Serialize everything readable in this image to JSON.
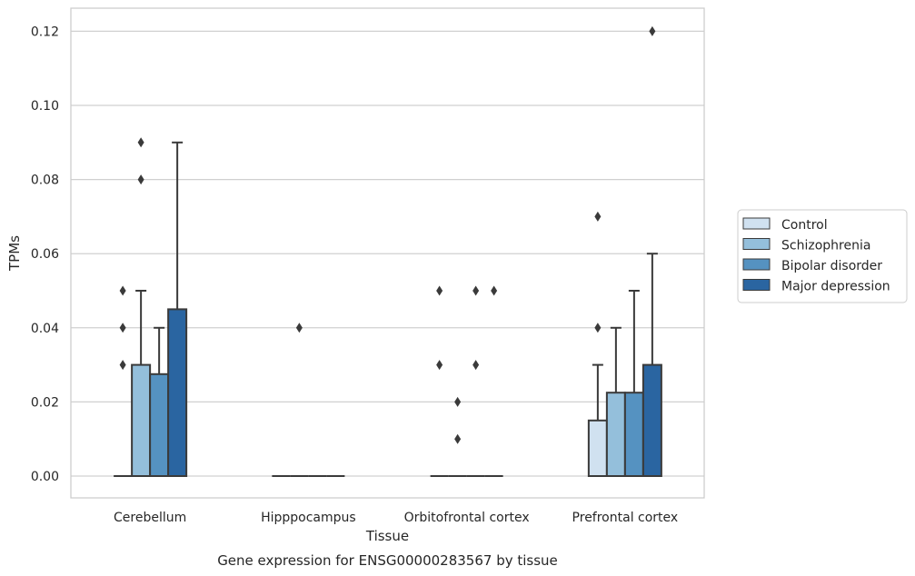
{
  "chart_data": {
    "type": "boxplot",
    "xlabel": "Tissue",
    "ylabel": "TPMs",
    "caption": "Gene expression for ENSG00000283567 by tissue",
    "ylim": [
      -0.006,
      0.126
    ],
    "yticks": [
      0.0,
      0.02,
      0.04,
      0.06,
      0.08,
      0.1,
      0.12
    ],
    "ytick_labels": [
      "0.00",
      "0.02",
      "0.04",
      "0.06",
      "0.08",
      "0.10",
      "0.12"
    ],
    "grid": true,
    "legend_position": "right",
    "categories": [
      "Cerebellum",
      "Hipppocampus",
      "Orbitofrontal cortex",
      "Prefrontal cortex"
    ],
    "series": [
      {
        "name": "Control",
        "color": "#d0e1f0",
        "boxes": [
          {
            "q1": 0,
            "median": 0,
            "q3": 0,
            "whisker_low": 0,
            "whisker_high": 0,
            "outliers": [
              0.03,
              0.04,
              0.05
            ]
          },
          {
            "q1": 0,
            "median": 0,
            "q3": 0,
            "whisker_low": 0,
            "whisker_high": 0,
            "outliers": []
          },
          {
            "q1": 0,
            "median": 0,
            "q3": 0,
            "whisker_low": 0,
            "whisker_high": 0,
            "outliers": [
              0.03,
              0.05
            ]
          },
          {
            "q1": 0,
            "median": 0,
            "q3": 0.015,
            "whisker_low": 0,
            "whisker_high": 0.03,
            "outliers": [
              0.04,
              0.07
            ]
          }
        ]
      },
      {
        "name": "Schizophrenia",
        "color": "#94bfdb",
        "boxes": [
          {
            "q1": 0,
            "median": 0,
            "q3": 0.03,
            "whisker_low": 0,
            "whisker_high": 0.05,
            "outliers": [
              0.08,
              0.09
            ]
          },
          {
            "q1": 0,
            "median": 0,
            "q3": 0,
            "whisker_low": 0,
            "whisker_high": 0,
            "outliers": [
              0.04
            ]
          },
          {
            "q1": 0,
            "median": 0,
            "q3": 0,
            "whisker_low": 0,
            "whisker_high": 0,
            "outliers": [
              0.01,
              0.02
            ]
          },
          {
            "q1": 0,
            "median": 0,
            "q3": 0.0225,
            "whisker_low": 0,
            "whisker_high": 0.04,
            "outliers": []
          }
        ]
      },
      {
        "name": "Bipolar disorder",
        "color": "#5592c1",
        "boxes": [
          {
            "q1": 0,
            "median": 0,
            "q3": 0.0275,
            "whisker_low": 0,
            "whisker_high": 0.04,
            "outliers": []
          },
          {
            "q1": 0,
            "median": 0,
            "q3": 0,
            "whisker_low": 0,
            "whisker_high": 0,
            "outliers": []
          },
          {
            "q1": 0,
            "median": 0,
            "q3": 0,
            "whisker_low": 0,
            "whisker_high": 0,
            "outliers": [
              0.03,
              0.05
            ]
          },
          {
            "q1": 0,
            "median": 0,
            "q3": 0.0225,
            "whisker_low": 0,
            "whisker_high": 0.05,
            "outliers": []
          }
        ]
      },
      {
        "name": "Major depression",
        "color": "#2a65a1",
        "boxes": [
          {
            "q1": 0,
            "median": 0,
            "q3": 0.045,
            "whisker_low": 0,
            "whisker_high": 0.09,
            "outliers": []
          },
          {
            "q1": 0,
            "median": 0,
            "q3": 0,
            "whisker_low": 0,
            "whisker_high": 0,
            "outliers": []
          },
          {
            "q1": 0,
            "median": 0,
            "q3": 0,
            "whisker_low": 0,
            "whisker_high": 0,
            "outliers": [
              0.05
            ]
          },
          {
            "q1": 0,
            "median": 0,
            "q3": 0.03,
            "whisker_low": 0,
            "whisker_high": 0.06,
            "outliers": [
              0.12
            ]
          }
        ]
      }
    ]
  }
}
